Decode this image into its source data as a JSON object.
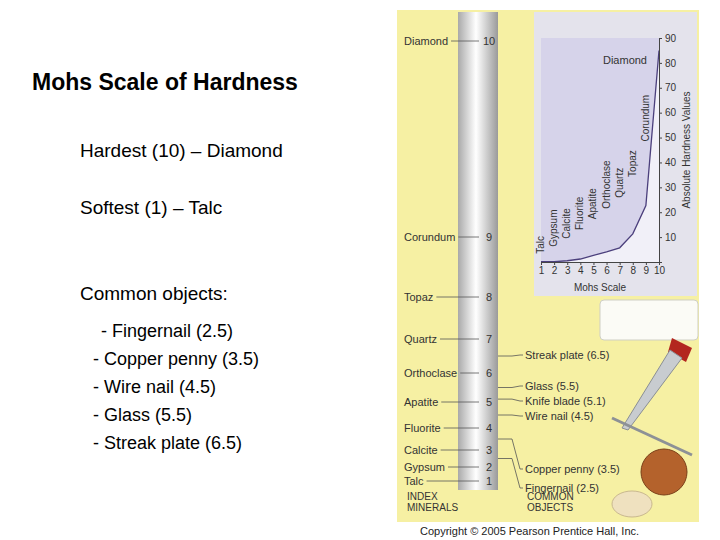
{
  "slide": {
    "title": "Mohs Scale of Hardness",
    "lines": [
      "Hardest (10) – Diamond",
      "Softest (1) – Talc",
      "Common objects:"
    ],
    "objects": [
      "- Fingernail (2.5)",
      "- Copper penny (3.5)",
      "- Wire nail (4.5)",
      "- Glass (5.5)",
      "- Streak plate (6.5)"
    ]
  },
  "scale": {
    "minerals": [
      {
        "name": "Talc",
        "value": 1
      },
      {
        "name": "Gypsum",
        "value": 2
      },
      {
        "name": "Calcite",
        "value": 3
      },
      {
        "name": "Fluorite",
        "value": 4
      },
      {
        "name": "Apatite",
        "value": 5
      },
      {
        "name": "Orthoclase",
        "value": 6
      },
      {
        "name": "Quartz",
        "value": 7
      },
      {
        "name": "Topaz",
        "value": 8
      },
      {
        "name": "Corundum",
        "value": 9
      },
      {
        "name": "Diamond",
        "value": 10
      }
    ],
    "objects": [
      {
        "label": "Fingernail (2.5)",
        "value": 2.5
      },
      {
        "label": "Copper penny (3.5)",
        "value": 3.5
      },
      {
        "label": "Wire nail (4.5)",
        "value": 4.5
      },
      {
        "label": "Knife blade (5.1)",
        "value": 5.1
      },
      {
        "label": "Glass (5.5)",
        "value": 5.5
      },
      {
        "label": "Streak plate (6.5)",
        "value": 6.5
      }
    ],
    "minerals_header": [
      "INDEX",
      "MINERALS"
    ],
    "objects_header": [
      "COMMON",
      "OBJECTS"
    ]
  },
  "chart_data": {
    "type": "line",
    "x": [
      1,
      2,
      3,
      4,
      5,
      6,
      7,
      8,
      9,
      10
    ],
    "values": [
      0.1,
      0.1,
      0.5,
      1.2,
      2.7,
      4.1,
      5.7,
      11.3,
      22.7,
      85
    ],
    "annotations": [
      "Talc",
      "Gypsum",
      "Calcite",
      "Fluorite",
      "Apatite",
      "Orthoclase",
      "Quartz",
      "Topaz",
      "Corundum",
      "Diamond"
    ],
    "xlim": [
      1,
      10
    ],
    "xticks": [
      1,
      2,
      3,
      4,
      5,
      6,
      7,
      8,
      9,
      10
    ],
    "ylim": [
      0,
      90
    ],
    "yticks": [
      10,
      20,
      30,
      40,
      50,
      60,
      70,
      80,
      90
    ],
    "xlabel": "Mohs Scale",
    "ylabel": "Absolute Hardness Values"
  },
  "copyright": "Copyright © 2005 Pearson Prentice Hall, Inc."
}
